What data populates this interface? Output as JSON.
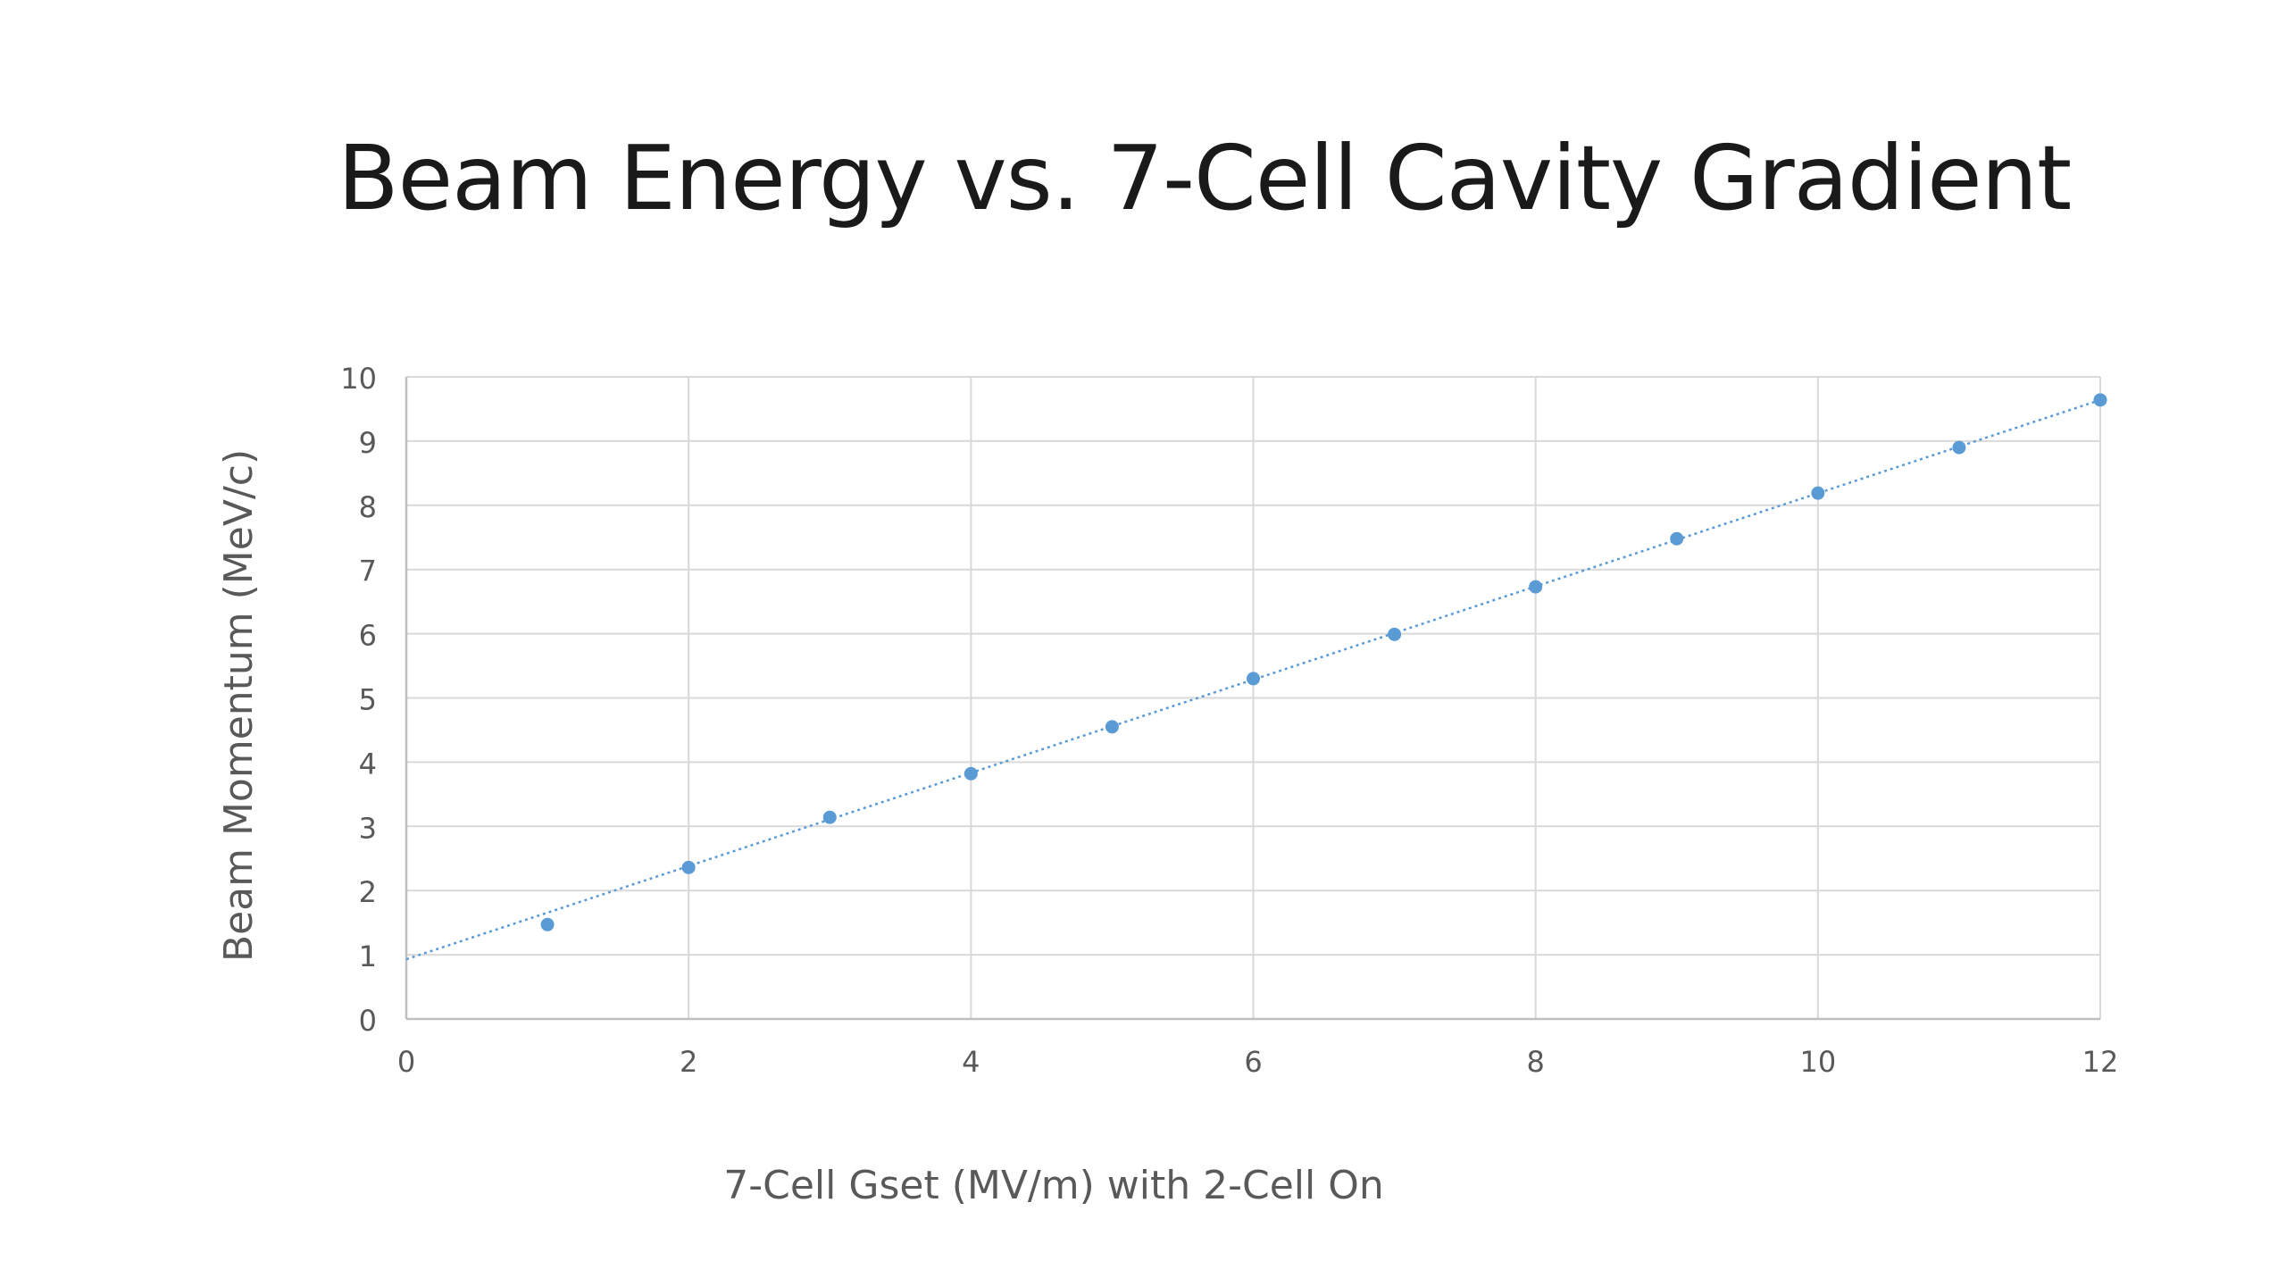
{
  "page": {
    "title": "Beam Energy vs. 7-Cell Cavity Gradient"
  },
  "chart_data": {
    "type": "scatter",
    "title": "Beam Energy vs. 7-Cell Cavity Gradient",
    "xlabel": "7-Cell Gset (MV/m) with 2-Cell On",
    "ylabel": "Beam Momentum (MeV/c)",
    "xlim": [
      0,
      12
    ],
    "ylim": [
      0,
      10
    ],
    "x_ticks": [
      "0",
      "2",
      "4",
      "6",
      "8",
      "10",
      "12"
    ],
    "y_ticks": [
      "0",
      "1",
      "2",
      "3",
      "4",
      "5",
      "6",
      "7",
      "8",
      "9",
      "10"
    ],
    "grid": true,
    "legend": "none",
    "series": [
      {
        "x": [
          1,
          2,
          3,
          4,
          5,
          6,
          7,
          8,
          9,
          10,
          11,
          12
        ],
        "y": [
          1.47,
          2.36,
          3.14,
          3.82,
          4.55,
          5.3,
          5.99,
          6.73,
          7.48,
          8.19,
          8.9,
          9.64
        ],
        "color": "#5b9bd5"
      }
    ],
    "trendline": {
      "style": "dotted",
      "color": "#5b9bd5",
      "x": [
        0,
        12
      ],
      "y": [
        0.93,
        9.64
      ]
    },
    "colors": {
      "grid": "#d9d9d9",
      "axis": "#bfbfbf",
      "tick_text": "#595959",
      "label_text": "#595959"
    }
  }
}
